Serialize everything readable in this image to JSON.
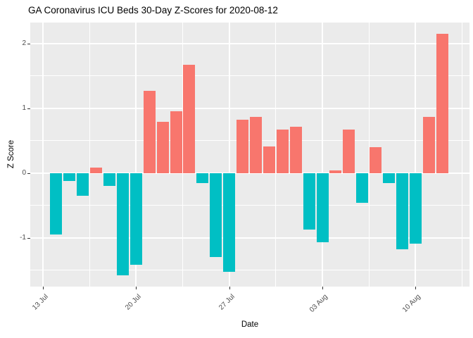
{
  "chart_data": {
    "type": "bar",
    "title": "GA Coronavirus ICU Beds 30-Day Z-Scores for 2020-08-12",
    "xlabel": "Date",
    "ylabel": "Z Score",
    "categories": [
      "2020-07-14",
      "2020-07-15",
      "2020-07-16",
      "2020-07-17",
      "2020-07-18",
      "2020-07-19",
      "2020-07-20",
      "2020-07-21",
      "2020-07-22",
      "2020-07-23",
      "2020-07-24",
      "2020-07-25",
      "2020-07-26",
      "2020-07-27",
      "2020-07-28",
      "2020-07-29",
      "2020-07-30",
      "2020-07-31",
      "2020-08-01",
      "2020-08-02",
      "2020-08-03",
      "2020-08-04",
      "2020-08-05",
      "2020-08-06",
      "2020-08-07",
      "2020-08-08",
      "2020-08-09",
      "2020-08-10",
      "2020-08-11",
      "2020-08-12"
    ],
    "values": [
      -0.95,
      -0.12,
      -0.35,
      0.09,
      -0.2,
      -1.58,
      -1.42,
      1.27,
      0.79,
      0.96,
      1.67,
      -0.15,
      -1.3,
      -1.53,
      0.83,
      0.87,
      0.41,
      0.67,
      0.72,
      -0.87,
      -1.07,
      0.04,
      0.67,
      -0.46,
      0.4,
      -0.15,
      -1.18,
      -1.09,
      0.87,
      2.15
    ],
    "x_ticks": [
      {
        "label": "13 Jul",
        "day": -1
      },
      {
        "label": "20 Jul",
        "day": 6
      },
      {
        "label": "27 Jul",
        "day": 13
      },
      {
        "label": "03 Aug",
        "day": 20
      },
      {
        "label": "10 Aug",
        "day": 27
      }
    ],
    "x_minor_days": [
      2.5,
      9.5,
      16.5,
      23.5,
      30.5
    ],
    "x_domain_days": [
      -1.95,
      31.05
    ],
    "y_ticks": [
      -1,
      0,
      1,
      2
    ],
    "y_minor": [
      -1.5,
      -0.5,
      0.5,
      1.5
    ],
    "ylim": [
      -1.753,
      2.326
    ],
    "bar_width_days": 0.9,
    "grid": true,
    "legend": "none",
    "colors": {
      "positive": "#F8766D",
      "negative": "#00BFC4",
      "panel_bg": "#EBEBEB",
      "grid": "#FFFFFF",
      "axis_text": "#4D4D4D",
      "tick_mark": "#333333",
      "title_text": "#000000"
    }
  }
}
